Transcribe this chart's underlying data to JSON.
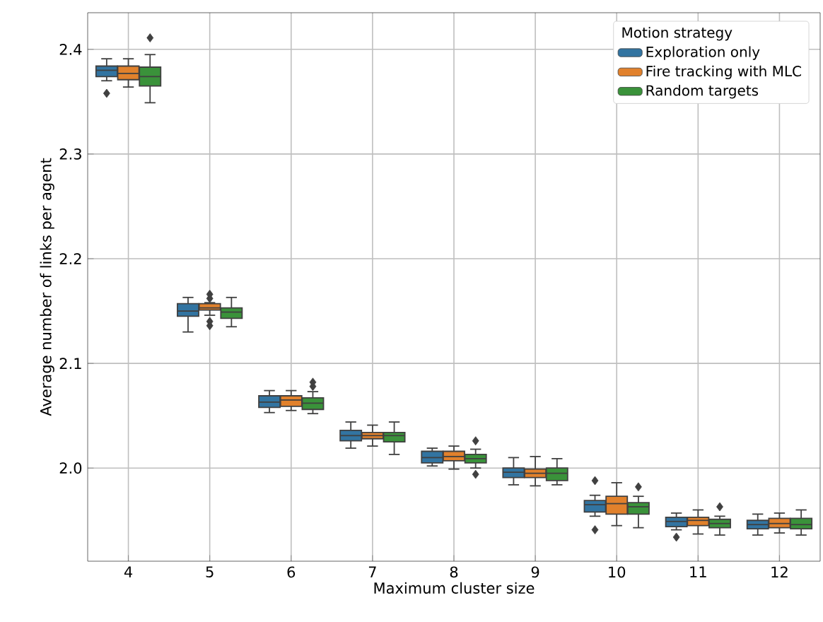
{
  "chart_data": {
    "type": "box",
    "xlabel": "Maximum cluster size",
    "ylabel": "Average number of links per agent",
    "legend_title": "Motion strategy",
    "legend": "top right",
    "grid": true,
    "categories": [
      "4",
      "5",
      "6",
      "7",
      "8",
      "9",
      "10",
      "11",
      "12"
    ],
    "ylim": [
      1.911,
      2.435
    ],
    "yticks": [
      {
        "value": 2.0,
        "label": "2.0"
      },
      {
        "value": 2.1,
        "label": "2.1"
      },
      {
        "value": 2.2,
        "label": "2.2"
      },
      {
        "value": 2.3,
        "label": "2.3"
      },
      {
        "value": 2.4,
        "label": "2.4"
      }
    ],
    "series": [
      {
        "name": "Exploration only",
        "color": "#3274a1",
        "boxes": [
          {
            "low": 2.37,
            "q1": 2.374,
            "median": 2.38,
            "q3": 2.384,
            "high": 2.391,
            "outliers": [
              2.358
            ]
          },
          {
            "low": 2.13,
            "q1": 2.145,
            "median": 2.15,
            "q3": 2.157,
            "high": 2.163
          },
          {
            "low": 2.053,
            "q1": 2.058,
            "median": 2.063,
            "q3": 2.069,
            "high": 2.074
          },
          {
            "low": 2.019,
            "q1": 2.026,
            "median": 2.031,
            "q3": 2.036,
            "high": 2.044
          },
          {
            "low": 2.002,
            "q1": 2.005,
            "median": 2.01,
            "q3": 2.016,
            "high": 2.019
          },
          {
            "low": 1.984,
            "q1": 1.991,
            "median": 1.996,
            "q3": 2.0,
            "high": 2.01
          },
          {
            "low": 1.954,
            "q1": 1.958,
            "median": 1.965,
            "q3": 1.969,
            "high": 1.974,
            "outliers": [
              1.988,
              1.941
            ]
          },
          {
            "low": 1.941,
            "q1": 1.944,
            "median": 1.949,
            "q3": 1.953,
            "high": 1.957,
            "outliers": [
              1.934
            ]
          },
          {
            "low": 1.936,
            "q1": 1.942,
            "median": 1.946,
            "q3": 1.95,
            "high": 1.956
          }
        ]
      },
      {
        "name": "Fire tracking with MLC",
        "color": "#e1812c",
        "boxes": [
          {
            "low": 2.364,
            "q1": 2.371,
            "median": 2.377,
            "q3": 2.384,
            "high": 2.391
          },
          {
            "low": 2.146,
            "q1": 2.151,
            "median": 2.153,
            "q3": 2.157,
            "high": 2.158,
            "outliers": [
              2.166,
              2.162,
              2.14,
              2.136
            ]
          },
          {
            "low": 2.055,
            "q1": 2.059,
            "median": 2.065,
            "q3": 2.069,
            "high": 2.074
          },
          {
            "low": 2.021,
            "q1": 2.028,
            "median": 2.031,
            "q3": 2.034,
            "high": 2.041
          },
          {
            "low": 1.999,
            "q1": 2.007,
            "median": 2.011,
            "q3": 2.016,
            "high": 2.021
          },
          {
            "low": 1.983,
            "q1": 1.991,
            "median": 1.995,
            "q3": 1.999,
            "high": 2.011
          },
          {
            "low": 1.945,
            "q1": 1.956,
            "median": 1.966,
            "q3": 1.973,
            "high": 1.986
          },
          {
            "low": 1.937,
            "q1": 1.945,
            "median": 1.95,
            "q3": 1.953,
            "high": 1.96
          },
          {
            "low": 1.938,
            "q1": 1.943,
            "median": 1.947,
            "q3": 1.952,
            "high": 1.957
          }
        ]
      },
      {
        "name": "Random targets",
        "color": "#3a923a",
        "boxes": [
          {
            "low": 2.349,
            "q1": 2.365,
            "median": 2.374,
            "q3": 2.383,
            "high": 2.395,
            "outliers": [
              2.411
            ]
          },
          {
            "low": 2.135,
            "q1": 2.143,
            "median": 2.149,
            "q3": 2.153,
            "high": 2.163
          },
          {
            "low": 2.052,
            "q1": 2.056,
            "median": 2.062,
            "q3": 2.067,
            "high": 2.073,
            "outliers": [
              2.078,
              2.082
            ]
          },
          {
            "low": 2.013,
            "q1": 2.025,
            "median": 2.031,
            "q3": 2.034,
            "high": 2.044
          },
          {
            "low": 2.0,
            "q1": 2.005,
            "median": 2.009,
            "q3": 2.013,
            "high": 2.018,
            "outliers": [
              2.026,
              1.994
            ]
          },
          {
            "low": 1.984,
            "q1": 1.988,
            "median": 1.995,
            "q3": 2.0,
            "high": 2.009
          },
          {
            "low": 1.943,
            "q1": 1.956,
            "median": 1.963,
            "q3": 1.967,
            "high": 1.973,
            "outliers": [
              1.982
            ]
          },
          {
            "low": 1.936,
            "q1": 1.943,
            "median": 1.947,
            "q3": 1.951,
            "high": 1.954,
            "outliers": [
              1.963
            ]
          },
          {
            "low": 1.936,
            "q1": 1.942,
            "median": 1.946,
            "q3": 1.952,
            "high": 1.96
          }
        ]
      }
    ]
  }
}
